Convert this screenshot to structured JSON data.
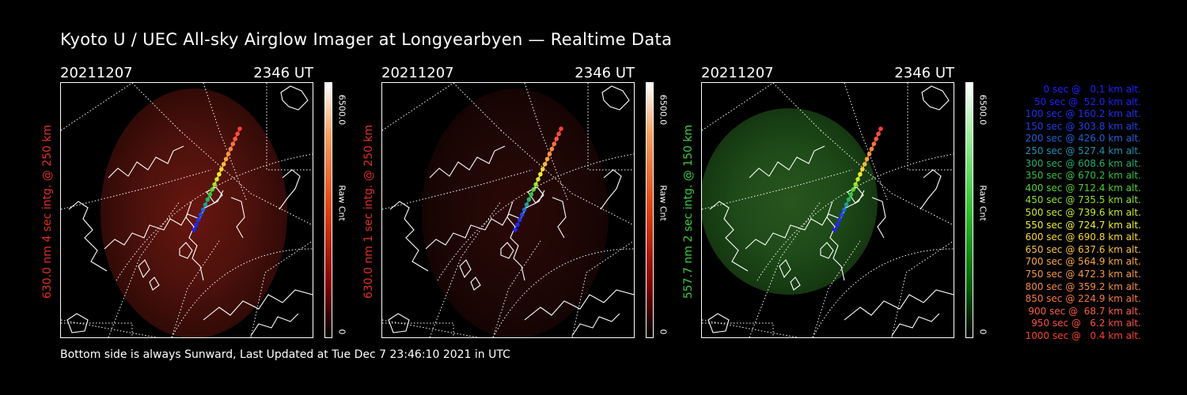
{
  "title": "Kyoto U / UEC All-sky Airglow Imager at Longyearbyen — Realtime Data",
  "footer": "Bottom side is always Sunward, Last Updated at Tue Dec  7 23:46:10 2021 in UTC",
  "colors": {
    "red_label": "#e03020",
    "green_label": "#3ccc3c"
  },
  "panels": [
    {
      "date": "20211207",
      "time": "2346 UT",
      "ylabel": "630.0 nm 4 sec intg. @ 250 km",
      "label_color": "#e03020",
      "cbar_max": "6500.0",
      "cbar_unit": "Raw Cnt",
      "cbar_min": "0",
      "colorscale": "red",
      "brightness": 0.85
    },
    {
      "date": "20211207",
      "time": "2346 UT",
      "ylabel": "630.0 nm 1 sec intg. @ 250 km",
      "label_color": "#e03020",
      "cbar_max": "6500.0",
      "cbar_unit": "Raw Cnt",
      "cbar_min": "0",
      "colorscale": "red",
      "brightness": 0.35
    },
    {
      "date": "20211207",
      "time": "2346 UT",
      "ylabel": "557.7 nm 2 sec intg. @ 150 km",
      "label_color": "#3ccc3c",
      "cbar_max": "6500.0",
      "cbar_unit": "Raw Cnt",
      "cbar_min": "0",
      "colorscale": "green",
      "brightness": 0.7
    }
  ],
  "legend": [
    {
      "text": "0 sec @   0.1 km alt.",
      "color": "#2020ff"
    },
    {
      "text": "50 sec @  52.0 km alt.",
      "color": "#2020ff"
    },
    {
      "text": "100 sec @ 160.2 km alt.",
      "color": "#2030f0"
    },
    {
      "text": "150 sec @ 303.8 km alt.",
      "color": "#2040e8"
    },
    {
      "text": "200 sec @ 426.0 km alt.",
      "color": "#2060d8"
    },
    {
      "text": "250 sec @ 527.4 km alt.",
      "color": "#2090b0"
    },
    {
      "text": "300 sec @ 608.6 km alt.",
      "color": "#20b070"
    },
    {
      "text": "350 sec @ 670.2 km alt.",
      "color": "#30c040"
    },
    {
      "text": "400 sec @ 712.4 km alt.",
      "color": "#50d030"
    },
    {
      "text": "450 sec @ 735.5 km alt.",
      "color": "#90e030"
    },
    {
      "text": "500 sec @ 739.6 km alt.",
      "color": "#c8e830"
    },
    {
      "text": "550 sec @ 724.7 km alt.",
      "color": "#f0f030"
    },
    {
      "text": "600 sec @ 690.8 km alt.",
      "color": "#f8d830"
    },
    {
      "text": "650 sec @ 637.6 km alt.",
      "color": "#f8c040"
    },
    {
      "text": "700 sec @ 564.9 km alt.",
      "color": "#f8a840"
    },
    {
      "text": "750 sec @ 472.3 km alt.",
      "color": "#f89840"
    },
    {
      "text": "800 sec @ 359.2 km alt.",
      "color": "#f88840"
    },
    {
      "text": "850 sec @ 224.9 km alt.",
      "color": "#f87840"
    },
    {
      "text": "900 sec @  68.7 km alt.",
      "color": "#f86040"
    },
    {
      "text": "950 sec @   6.2 km alt.",
      "color": "#f85040"
    },
    {
      "text": "1000 sec @   0.4 km alt.",
      "color": "#f84030"
    }
  ]
}
